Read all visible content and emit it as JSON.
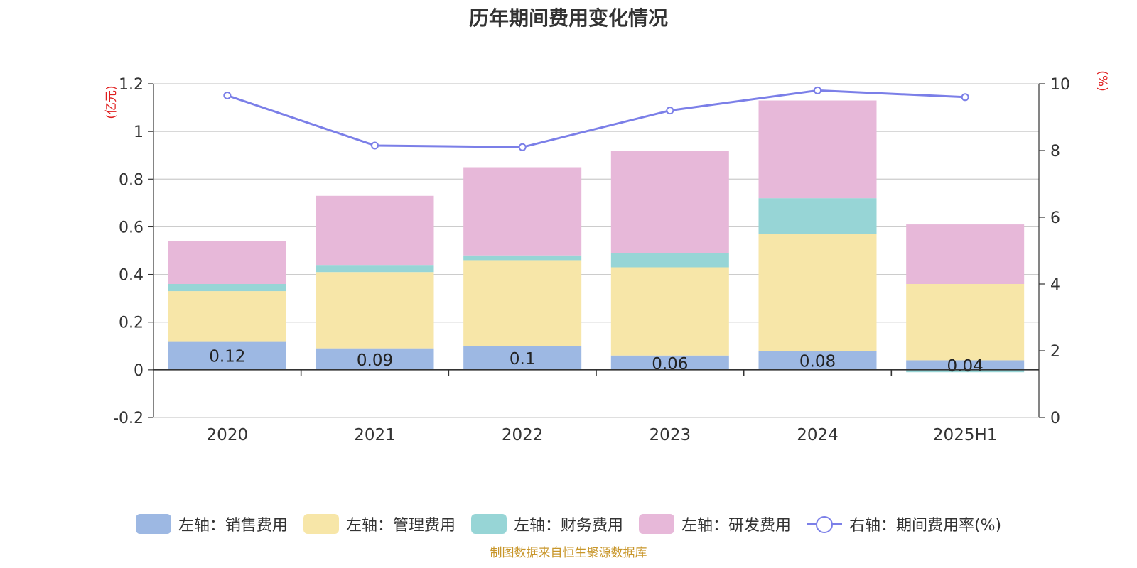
{
  "title": "历年期间费用变化情况",
  "source": "制图数据来自恒生聚源数据库",
  "left_axis_unit": "(亿元)",
  "right_axis_unit": "(%)",
  "legend": [
    {
      "label": "左轴：销售费用",
      "color": "#9db8e3",
      "kind": "bar"
    },
    {
      "label": "左轴：管理费用",
      "color": "#f7e6a8",
      "kind": "bar"
    },
    {
      "label": "左轴：财务费用",
      "color": "#97d5d6",
      "kind": "bar"
    },
    {
      "label": "左轴：研发费用",
      "color": "#e7b8d9",
      "kind": "bar"
    },
    {
      "label": "右轴：期间费用率(%)",
      "color": "#7b7fe8",
      "kind": "line"
    }
  ],
  "chart_data": {
    "type": "bar",
    "stacked": true,
    "categories": [
      "2020",
      "2021",
      "2022",
      "2023",
      "2024",
      "2025H1"
    ],
    "series": [
      {
        "name": "左轴：销售费用",
        "axis": "left",
        "color": "#9db8e3",
        "values": [
          0.12,
          0.09,
          0.1,
          0.06,
          0.08,
          0.04
        ],
        "labels": [
          "0.12",
          "0.09",
          "0.1",
          "0.06",
          "0.08",
          "0.04"
        ]
      },
      {
        "name": "左轴：管理费用",
        "axis": "left",
        "color": "#f7e6a8",
        "values": [
          0.21,
          0.32,
          0.36,
          0.37,
          0.49,
          0.32
        ]
      },
      {
        "name": "左轴：财务费用",
        "axis": "left",
        "color": "#97d5d6",
        "values": [
          0.03,
          0.03,
          0.02,
          0.06,
          0.15,
          -0.01
        ]
      },
      {
        "name": "左轴：研发费用",
        "axis": "left",
        "color": "#e7b8d9",
        "values": [
          0.18,
          0.29,
          0.37,
          0.43,
          0.41,
          0.25
        ]
      },
      {
        "name": "右轴：期间费用率(%)",
        "axis": "right",
        "type": "line",
        "color": "#7b7fe8",
        "values": [
          9.65,
          8.15,
          8.1,
          9.2,
          9.8,
          9.6
        ]
      }
    ],
    "left_axis": {
      "min": -0.2,
      "max": 1.2,
      "ticks": [
        -0.2,
        0,
        0.2,
        0.4,
        0.6,
        0.8,
        1,
        1.2
      ],
      "tick_labels": [
        "-0.2",
        "0",
        "0.2",
        "0.4",
        "0.6",
        "0.8",
        "1",
        "1.2"
      ]
    },
    "right_axis": {
      "min": 0,
      "max": 10,
      "ticks": [
        0,
        2,
        4,
        6,
        8,
        10
      ],
      "tick_labels": [
        "0",
        "2",
        "4",
        "6",
        "8",
        "10"
      ]
    },
    "grid": true,
    "legend_position": "bottom"
  }
}
